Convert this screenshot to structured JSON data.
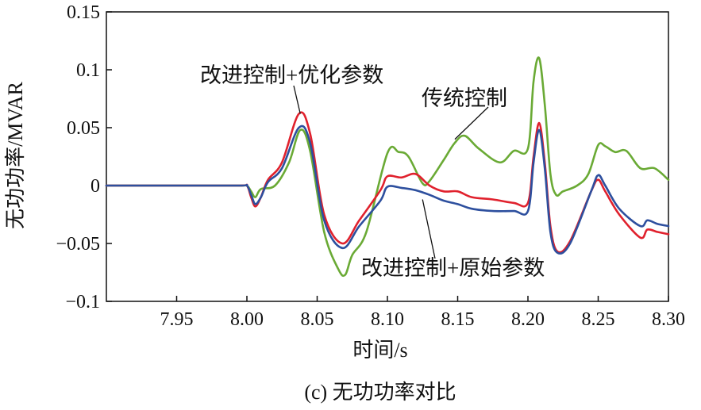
{
  "caption": "(c) 无功功率对比",
  "chart_data": {
    "type": "line",
    "xlabel": "时间/s",
    "ylabel": "无功功率/MVAR",
    "xlim": [
      7.9,
      8.3
    ],
    "ylim": [
      -0.1,
      0.15
    ],
    "xticks": [
      7.95,
      8.0,
      8.05,
      8.1,
      8.15,
      8.2,
      8.25,
      8.3
    ],
    "xtick_labels": [
      "7.95",
      "8.00",
      "8.05",
      "8.10",
      "8.15",
      "8.20",
      "8.25",
      "8.30"
    ],
    "yticks": [
      -0.1,
      -0.05,
      0,
      0.05,
      0.1,
      0.15
    ],
    "ytick_labels": [
      "−0.1",
      "−0.05",
      "0",
      "0.05",
      "0.1",
      "0.15"
    ],
    "grid": false,
    "legend": "none",
    "series": [
      {
        "name": "传统控制",
        "color": "#6aaa35",
        "x": [
          7.9,
          7.95,
          7.995,
          8.0,
          8.003,
          8.006,
          8.01,
          8.02,
          8.03,
          8.038,
          8.045,
          8.055,
          8.065,
          8.07,
          8.075,
          8.085,
          8.1,
          8.108,
          8.115,
          8.125,
          8.13,
          8.14,
          8.148,
          8.155,
          8.165,
          8.18,
          8.19,
          8.2,
          8.204,
          8.208,
          8.212,
          8.216,
          8.22,
          8.225,
          8.235,
          8.243,
          8.25,
          8.255,
          8.262,
          8.27,
          8.28,
          8.29,
          8.3
        ],
        "y": [
          0.0,
          0.0,
          0.0,
          0.0,
          -0.005,
          -0.01,
          -0.003,
          0.0,
          0.02,
          0.048,
          0.03,
          -0.04,
          -0.072,
          -0.077,
          -0.06,
          -0.04,
          0.028,
          0.029,
          0.025,
          0.002,
          0.004,
          0.022,
          0.037,
          0.043,
          0.032,
          0.02,
          0.03,
          0.032,
          0.09,
          0.11,
          0.07,
          0.01,
          -0.008,
          -0.005,
          0.0,
          0.01,
          0.035,
          0.034,
          0.029,
          0.03,
          0.015,
          0.015,
          0.005
        ]
      },
      {
        "name": "改进控制+优化参数",
        "color": "#e0212d",
        "x": [
          7.9,
          7.95,
          7.995,
          8.0,
          8.003,
          8.006,
          8.01,
          8.015,
          8.025,
          8.037,
          8.045,
          8.055,
          8.068,
          8.08,
          8.095,
          8.1,
          8.11,
          8.12,
          8.13,
          8.14,
          8.15,
          8.16,
          8.175,
          8.19,
          8.2,
          8.204,
          8.208,
          8.212,
          8.216,
          8.221,
          8.23,
          8.245,
          8.25,
          8.255,
          8.265,
          8.28,
          8.285,
          8.292,
          8.3
        ],
        "y": [
          0.0,
          0.0,
          0.0,
          0.0,
          -0.01,
          -0.018,
          -0.01,
          0.005,
          0.02,
          0.062,
          0.045,
          -0.025,
          -0.05,
          -0.03,
          -0.004,
          0.008,
          0.007,
          0.01,
          0.0,
          -0.005,
          -0.005,
          -0.01,
          -0.012,
          -0.015,
          -0.015,
          0.025,
          0.054,
          0.02,
          -0.035,
          -0.057,
          -0.048,
          -0.005,
          0.005,
          -0.005,
          -0.025,
          -0.045,
          -0.038,
          -0.04,
          -0.042
        ]
      },
      {
        "name": "改进控制+原始参数",
        "color": "#2d4f9e",
        "x": [
          7.9,
          7.95,
          7.995,
          8.0,
          8.003,
          8.006,
          8.01,
          8.015,
          8.025,
          8.037,
          8.045,
          8.055,
          8.068,
          8.08,
          8.095,
          8.1,
          8.11,
          8.12,
          8.13,
          8.14,
          8.15,
          8.16,
          8.175,
          8.19,
          8.2,
          8.204,
          8.208,
          8.212,
          8.216,
          8.221,
          8.23,
          8.245,
          8.25,
          8.255,
          8.265,
          8.28,
          8.285,
          8.292,
          8.3
        ],
        "y": [
          0.0,
          0.0,
          0.0,
          0.0,
          -0.008,
          -0.016,
          -0.01,
          0.003,
          0.015,
          0.05,
          0.037,
          -0.03,
          -0.054,
          -0.035,
          -0.013,
          -0.001,
          -0.002,
          -0.004,
          -0.008,
          -0.013,
          -0.016,
          -0.02,
          -0.022,
          -0.022,
          -0.022,
          0.02,
          0.048,
          0.015,
          -0.04,
          -0.058,
          -0.05,
          -0.005,
          0.009,
          0.0,
          -0.02,
          -0.035,
          -0.03,
          -0.033,
          -0.035
        ]
      }
    ],
    "annotations": [
      {
        "text": "改进控制+优化参数",
        "target_x": 8.038,
        "target_y": 0.062
      },
      {
        "text": "传统控制",
        "target_x": 8.148,
        "target_y": 0.04
      },
      {
        "text": "改进控制+原始参数",
        "target_x": 8.125,
        "target_y": -0.012
      }
    ]
  }
}
